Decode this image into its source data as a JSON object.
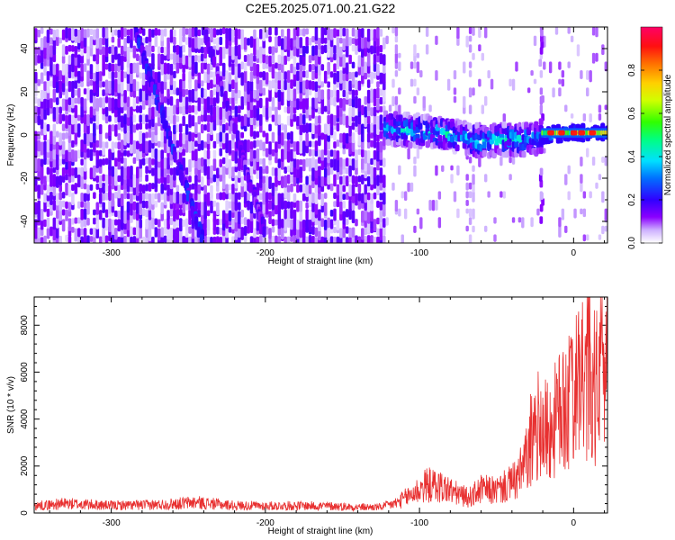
{
  "chart_data": [
    {
      "type": "heatmap",
      "title": "C2E5.2025.071.00.21.G22",
      "xlabel": "Height of straight line (km)",
      "ylabel": "Frequency (Hz)",
      "xlim": [
        -350,
        22
      ],
      "ylim": [
        -50,
        50
      ],
      "xticks": [
        -300,
        -200,
        -100,
        0
      ],
      "yticks": [
        -40,
        -20,
        0,
        20,
        40
      ],
      "colorbar": {
        "label": "Normalized spectral amplitude",
        "range": [
          0,
          1
        ],
        "ticks": [
          0.0,
          0.2,
          0.4,
          0.6,
          0.8
        ],
        "tick_labels": [
          "0.0",
          "0.2",
          "0.4",
          "0.6",
          "0.8"
        ],
        "colormap": [
          "#ffffff",
          "#7b00ff",
          "#0000ff",
          "#00ffff",
          "#00ff00",
          "#ffff00",
          "#ff8000",
          "#ff0000",
          "#ff00aa"
        ]
      },
      "features": [
        {
          "name": "noise-region",
          "x_range": [
            -350,
            -122
          ],
          "amplitude": 0.12
        },
        {
          "name": "diagonal-streak-1",
          "points": [
            [
              -285,
              50
            ],
            [
              -240,
              -50
            ]
          ],
          "amplitude": 0.18
        },
        {
          "name": "diagonal-streak-2",
          "points": [
            [
              -240,
              50
            ],
            [
              -200,
              -45
            ]
          ],
          "amplitude": 0.12
        },
        {
          "name": "signal-band",
          "points": [
            [
              -122,
              3
            ],
            [
              -100,
              2
            ],
            [
              -80,
              0
            ],
            [
              -60,
              -3
            ],
            [
              -40,
              -2
            ],
            [
              -25,
              -2
            ],
            [
              -20,
              0
            ],
            [
              0,
              1
            ],
            [
              22,
              1
            ]
          ],
          "amplitude": 0.35
        },
        {
          "name": "strong-tone",
          "x_range": [
            -20,
            22
          ],
          "y": 1,
          "amplitude": 0.9
        },
        {
          "name": "vertical-line",
          "x": -22,
          "amplitude": 0.15
        }
      ]
    },
    {
      "type": "line",
      "xlabel": "Height of straight line (km)",
      "ylabel": "SNR (10 * v/v)",
      "xlim": [
        -350,
        22
      ],
      "ylim": [
        0,
        9200
      ],
      "xticks": [
        -300,
        -200,
        -100,
        0
      ],
      "yticks": [
        0,
        2000,
        4000,
        6000,
        8000
      ],
      "series": [
        {
          "name": "SNR",
          "color": "#e83030",
          "x": [
            -350,
            -330,
            -300,
            -270,
            -245,
            -220,
            -200,
            -180,
            -160,
            -140,
            -125,
            -115,
            -105,
            -95,
            -85,
            -75,
            -68,
            -60,
            -50,
            -42,
            -35,
            -30,
            -26,
            -22,
            -18,
            -14,
            -10,
            -6,
            -3,
            0,
            4,
            8,
            10,
            12,
            16,
            20,
            22
          ],
          "values": [
            300,
            400,
            320,
            350,
            450,
            320,
            300,
            310,
            300,
            250,
            250,
            420,
            800,
            1200,
            1100,
            800,
            650,
            1000,
            950,
            1200,
            1500,
            2400,
            3300,
            3800,
            3500,
            3600,
            4200,
            4500,
            5000,
            5200,
            5200,
            6000,
            6600,
            5200,
            5800,
            6800,
            6500
          ]
        }
      ]
    }
  ]
}
